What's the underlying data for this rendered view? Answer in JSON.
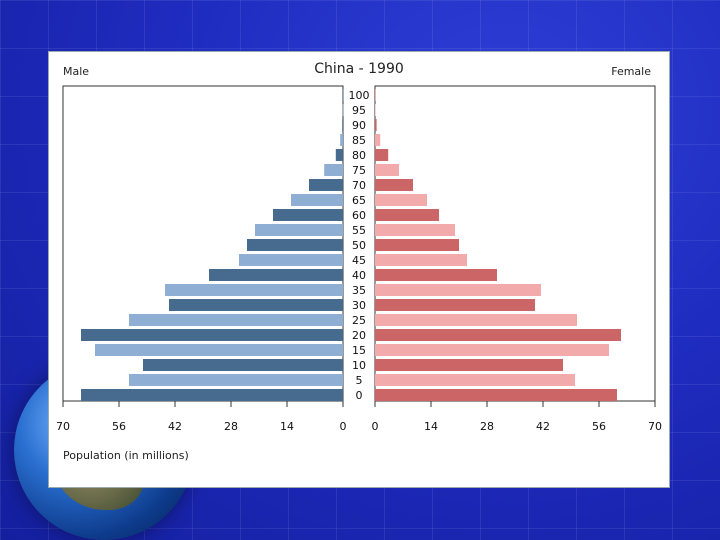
{
  "chart_data": {
    "type": "bar",
    "title": "China - 1990",
    "left_label": "Male",
    "right_label": "Female",
    "xlabel": "Population (in millions)",
    "xlim": [
      0,
      70
    ],
    "x_ticks_male": [
      "70",
      "56",
      "42",
      "28",
      "14",
      "0"
    ],
    "x_ticks_female": [
      "0",
      "14",
      "28",
      "42",
      "56",
      "70"
    ],
    "categories": [
      "0",
      "5",
      "10",
      "15",
      "20",
      "25",
      "30",
      "35",
      "40",
      "45",
      "50",
      "55",
      "60",
      "65",
      "70",
      "75",
      "80",
      "85",
      "90",
      "95",
      "100"
    ],
    "series": [
      {
        "name": "Male",
        "values": [
          65.5,
          53.5,
          50,
          62,
          65.5,
          53.5,
          43.5,
          44.5,
          33.5,
          26,
          24,
          22,
          17.5,
          13,
          8.5,
          4.7,
          1.8,
          0.7,
          0.2,
          0.05,
          0.02
        ]
      },
      {
        "name": "Female",
        "values": [
          60.5,
          50,
          47,
          58.5,
          61.5,
          50.5,
          40,
          41.5,
          30.5,
          23,
          21,
          20,
          16,
          13,
          9.5,
          6,
          3.3,
          1.3,
          0.4,
          0.1,
          0.03
        ]
      }
    ],
    "colors": {
      "male_dark": "#476a8f",
      "male_light": "#8eaed4",
      "female_dark": "#cc6666",
      "female_light": "#f2aaaa"
    }
  }
}
